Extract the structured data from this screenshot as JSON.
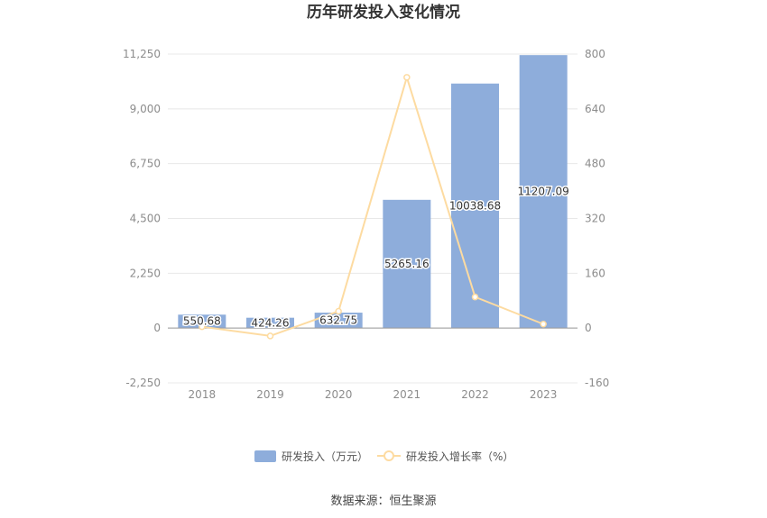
{
  "chart_data": {
    "type": "bar",
    "title": "历年研发投入变化情况",
    "categories": [
      "2018",
      "2019",
      "2020",
      "2021",
      "2022",
      "2023"
    ],
    "series": [
      {
        "name": "研发投入（万元）",
        "type": "bar",
        "axis": "left",
        "color": "#8eaddb",
        "values": [
          550.68,
          424.26,
          632.75,
          5265.16,
          10038.68,
          11207.09
        ],
        "labels": [
          "550.68",
          "424.26",
          "632.75",
          "5265.16",
          "10038.68",
          "11207.09"
        ]
      },
      {
        "name": "研发投入增长率（%）",
        "type": "line",
        "axis": "right",
        "color": "#fddba1",
        "values": [
          3.9,
          -23.0,
          49.1,
          732.1,
          90.7,
          11.6
        ]
      }
    ],
    "y_left": {
      "range": [
        -2250,
        11250
      ],
      "ticks": [
        "11,250",
        "9,000",
        "6,750",
        "4,500",
        "2,250",
        "0",
        "-2,250"
      ],
      "tick_values": [
        11250,
        9000,
        6750,
        4500,
        2250,
        0,
        -2250
      ]
    },
    "y_right": {
      "range": [
        -160,
        800
      ],
      "ticks": [
        "800",
        "640",
        "480",
        "320",
        "160",
        "0",
        "-160"
      ],
      "tick_values": [
        800,
        640,
        480,
        320,
        160,
        0,
        -160
      ]
    },
    "grid": true,
    "legend_position": "bottom-center",
    "source": "数据来源：恒生聚源"
  }
}
